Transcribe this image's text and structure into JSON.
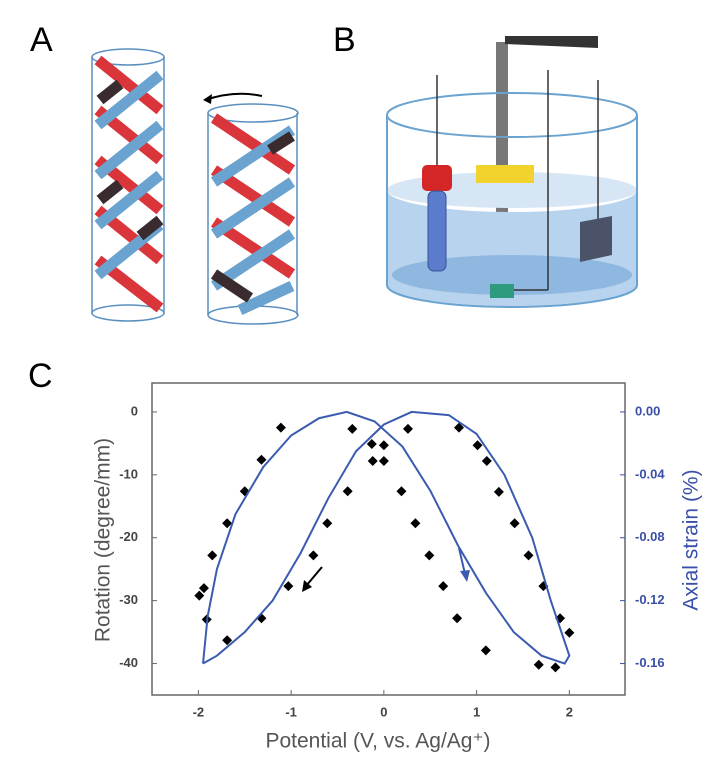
{
  "panel_labels": [
    "A",
    "B",
    "C"
  ],
  "chart_data": {
    "type": "scatter",
    "xlabel": "Potential (V, vs. Ag/Ag⁺)",
    "ylabel": "Rotation (degree/mm)",
    "y2label": "Axial strain (%)",
    "xlim": [
      -2.5,
      2.6
    ],
    "xticks": [
      -2,
      -1,
      0,
      1,
      2
    ],
    "ylim": [
      -45,
      4.6
    ],
    "yticks": [
      0,
      -10,
      -20,
      -30,
      -40
    ],
    "y2lim": [
      -0.18,
      0.0184
    ],
    "y2ticks": [
      {
        "value": 0,
        "label": "0.00"
      },
      {
        "value": -0.04,
        "label": "-0.04"
      },
      {
        "value": -0.08,
        "label": "-0.08"
      },
      {
        "value": -0.12,
        "label": "-0.12"
      },
      {
        "value": -0.16,
        "label": "-0.16"
      }
    ],
    "series": [
      {
        "type": "scatter",
        "color": "#000000",
        "x": [
          -1.99,
          -1.94,
          -1.91,
          -1.85,
          -1.69,
          -1.69,
          -1.5,
          -1.32,
          -1.32,
          -1.11,
          -1.03,
          -0.76,
          -0.61,
          -0.39,
          -0.34,
          -0.12,
          -0.13,
          0,
          0,
          0.19,
          0.26,
          0.34,
          0.49,
          0.64,
          0.79,
          0.81,
          1.01,
          1.1,
          1.11,
          1.24,
          1.41,
          1.56,
          1.67,
          1.85,
          1.72,
          1.9,
          2.0
        ],
        "values": [
          -29.2,
          -28,
          -33,
          -22.8,
          -36.3,
          -17.7,
          -12.6,
          -7.6,
          -32.8,
          -2.5,
          -27.7,
          -22.8,
          -17.7,
          -12.6,
          -2.7,
          -7.8,
          -5.1,
          -7.8,
          -5.3,
          -12.6,
          -2.7,
          -17.7,
          -22.8,
          -27.7,
          -32.8,
          -2.5,
          -5.3,
          -37.9,
          -7.8,
          -12.7,
          -17.7,
          -22.8,
          -40.2,
          -40.6,
          -27.7,
          -32.8,
          -35.1
        ]
      },
      {
        "type": "line",
        "axis": "y2",
        "color": "#3a5bb0",
        "x": [
          -1.95,
          -1.9,
          -1.8,
          -1.6,
          -1.3,
          -1.0,
          -0.7,
          -0.4,
          -0.1,
          0.2,
          0.5,
          0.8,
          1.1,
          1.4,
          1.7,
          1.95,
          2.0,
          1.8,
          1.6,
          1.3,
          1.0,
          0.7,
          0.3,
          0.0,
          -0.3,
          -0.6,
          -0.9,
          -1.2,
          -1.5,
          -1.8,
          -1.95
        ],
        "values": [
          -0.16,
          -0.13,
          -0.1,
          -0.065,
          -0.035,
          -0.015,
          -0.004,
          0.0,
          -0.006,
          -0.022,
          -0.05,
          -0.085,
          -0.115,
          -0.14,
          -0.155,
          -0.16,
          -0.155,
          -0.12,
          -0.08,
          -0.04,
          -0.014,
          -0.002,
          0.0,
          -0.008,
          -0.025,
          -0.055,
          -0.09,
          -0.12,
          -0.14,
          -0.155,
          -0.16
        ]
      }
    ]
  }
}
